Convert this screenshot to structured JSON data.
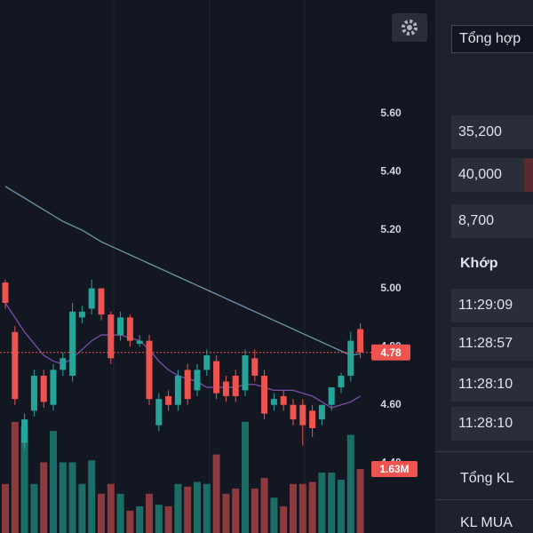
{
  "chart": {
    "type": "candlestick",
    "ylim": [
      4.16,
      5.99
    ],
    "yticks": [
      {
        "value": 5.6,
        "label": "5.60"
      },
      {
        "value": 5.4,
        "label": "5.40"
      },
      {
        "value": 5.2,
        "label": "5.20"
      },
      {
        "value": 5.0,
        "label": "5.00"
      },
      {
        "value": 4.8,
        "label": "4.80"
      },
      {
        "value": 4.6,
        "label": "4.60"
      },
      {
        "value": 4.4,
        "label": "4.40"
      }
    ],
    "open": [
      5.02,
      4.85,
      4.47,
      4.58,
      4.7,
      4.6,
      4.72,
      4.7,
      4.9,
      4.93,
      5.0,
      4.91,
      4.84,
      4.9,
      4.81,
      4.82,
      4.53,
      4.63,
      4.6,
      4.72,
      4.65,
      4.72,
      4.75,
      4.68,
      4.7,
      4.65,
      4.76,
      4.7,
      4.6,
      4.63,
      4.6,
      4.6,
      4.58,
      4.55,
      4.6,
      4.66,
      4.7,
      4.86
    ],
    "high": [
      5.03,
      4.87,
      4.57,
      4.72,
      4.72,
      4.74,
      4.78,
      4.95,
      4.94,
      5.03,
      5.0,
      4.92,
      4.92,
      4.91,
      4.84,
      4.84,
      4.64,
      4.65,
      4.72,
      4.74,
      4.74,
      4.79,
      4.77,
      4.7,
      4.72,
      4.79,
      4.79,
      4.72,
      4.64,
      4.65,
      4.62,
      4.62,
      4.6,
      4.6,
      4.66,
      4.71,
      4.85,
      4.88
    ],
    "low": [
      4.93,
      4.6,
      4.45,
      4.56,
      4.59,
      4.58,
      4.7,
      4.68,
      4.88,
      4.91,
      4.89,
      4.74,
      4.82,
      4.8,
      4.8,
      4.6,
      4.51,
      4.58,
      4.58,
      4.6,
      4.63,
      4.7,
      4.62,
      4.61,
      4.61,
      4.63,
      4.68,
      4.55,
      4.58,
      4.58,
      4.53,
      4.46,
      4.49,
      4.53,
      4.58,
      4.64,
      4.68,
      4.76
    ],
    "close": [
      4.95,
      4.62,
      4.55,
      4.7,
      4.61,
      4.72,
      4.76,
      4.92,
      4.92,
      5.0,
      4.91,
      4.76,
      4.9,
      4.82,
      4.82,
      4.62,
      4.62,
      4.6,
      4.7,
      4.62,
      4.72,
      4.77,
      4.64,
      4.63,
      4.63,
      4.77,
      4.7,
      4.57,
      4.62,
      4.6,
      4.55,
      4.53,
      4.52,
      4.6,
      4.66,
      4.7,
      4.82,
      4.78
    ],
    "volume_ylim": [
      0,
      3.62
    ],
    "volume": [
      1.25,
      2.83,
      2.7,
      1.25,
      1.8,
      2.6,
      1.8,
      1.8,
      1.25,
      1.85,
      1.0,
      1.25,
      1.0,
      0.57,
      0.68,
      1.0,
      0.72,
      0.68,
      1.25,
      1.18,
      1.3,
      1.25,
      2.0,
      1.0,
      1.13,
      2.83,
      1.13,
      1.4,
      0.9,
      0.68,
      1.25,
      1.25,
      1.3,
      1.54,
      1.54,
      1.36,
      2.5,
      1.63
    ],
    "ma_long": [
      5.35,
      5.33,
      5.31,
      5.29,
      5.27,
      5.25,
      5.23,
      5.215,
      5.2,
      5.18,
      5.16,
      5.145,
      5.13,
      5.115,
      5.1,
      5.085,
      5.07,
      5.055,
      5.04,
      5.025,
      5.01,
      4.995,
      4.98,
      4.965,
      4.95,
      4.935,
      4.92,
      4.905,
      4.89,
      4.875,
      4.86,
      4.845,
      4.83,
      4.815,
      4.8,
      4.785,
      4.77,
      4.775
    ],
    "ma_short": [
      4.95,
      4.9,
      4.85,
      4.81,
      4.77,
      4.75,
      4.74,
      4.76,
      4.79,
      4.82,
      4.84,
      4.84,
      4.84,
      4.83,
      4.82,
      4.79,
      4.75,
      4.72,
      4.7,
      4.69,
      4.68,
      4.66,
      4.66,
      4.66,
      4.66,
      4.67,
      4.67,
      4.66,
      4.65,
      4.65,
      4.65,
      4.64,
      4.63,
      4.61,
      4.59,
      4.6,
      4.61,
      4.63
    ],
    "last_price": {
      "value": 4.78,
      "label": "4.78"
    },
    "volume_label": {
      "value": 1.63,
      "label": "1.63M"
    }
  },
  "panel": {
    "dropdown": "Tổng hợp",
    "prices": [
      "35,200",
      "40,000",
      "8,700"
    ],
    "heading": "Khớp",
    "times": [
      "11:29:09",
      "11:28:57",
      "11:28:10",
      "11:28:10"
    ],
    "total": "Tổng KL",
    "buy": "KL MUA"
  }
}
